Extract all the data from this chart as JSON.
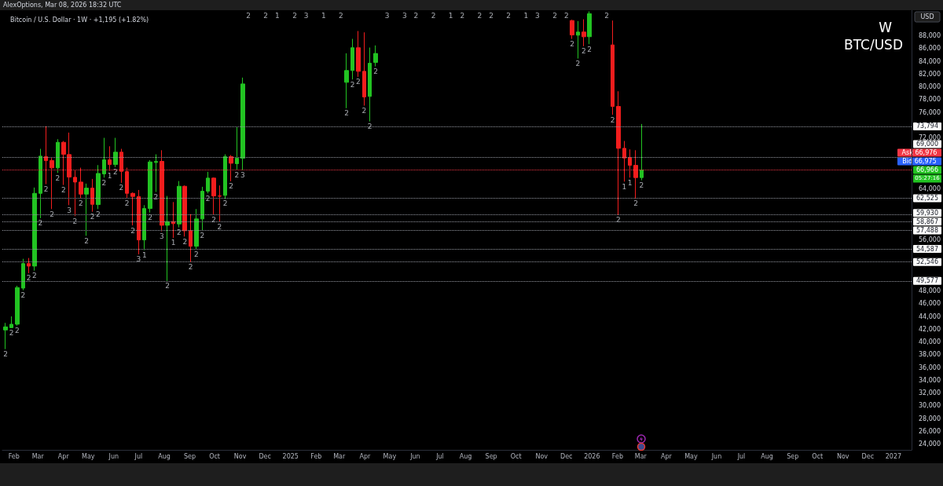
{
  "chart_data": {
    "type": "candlestick",
    "title": "BTC/USD",
    "subtitle": "Bitcoin / U.S. Dollar · 1W · +1,195 (+1.82%)",
    "ylabel": "USD",
    "colors": [
      "#22c322",
      "#22c322",
      "#22c322",
      "#22c322",
      "#f21d1d",
      "#22c322",
      "#22c322",
      "#f21d1d",
      "#f21d1d",
      "#22c322",
      "#f21d1d",
      "#f21d1d",
      "#f21d1d",
      "#f21d1d",
      "#22c322",
      "#f21d1d",
      "#22c322",
      "#22c322",
      "#f21d1d",
      "#22c322",
      "#f21d1d",
      "#f21d1d",
      "#f21d1d",
      "#f21d1d",
      "#22c322",
      "#22c322",
      "#22c322",
      "#f21d1d",
      "#22c322",
      "#f21d1d",
      "#22c322",
      "#f21d1d",
      "#f21d1d",
      "#22c322",
      "#22c322",
      "#22c322",
      "#f21d1d",
      "#f21d1d",
      "#22c322",
      "#f21d1d",
      "#22c322",
      "#22c322",
      "#22c322",
      "#22c322",
      "#f21d1d",
      "#f21d1d",
      "#22c322",
      "#22c322",
      "#f21d1d",
      "#22c322",
      "#f21d1d",
      "#22c322",
      "#f21d1d",
      "#f21d1d",
      "#f21d1d",
      "#f21d1d",
      "#f21d1d",
      "#22c322"
    ],
    "x": [
      "2024-01-22",
      "2024-01-29",
      "2024-02-05",
      "2024-02-12",
      "2024-02-19",
      "2024-02-26",
      "2024-03-04",
      "2024-03-11",
      "2024-03-18",
      "2024-03-25",
      "2024-04-01",
      "2024-04-08",
      "2024-04-15",
      "2024-04-22",
      "2024-04-29",
      "2024-05-06",
      "2024-05-13",
      "2024-05-20",
      "2024-05-27",
      "2024-06-03",
      "2024-06-10",
      "2024-06-17",
      "2024-06-24",
      "2024-07-01",
      "2024-07-08",
      "2024-07-15",
      "2024-07-22",
      "2024-07-29",
      "2024-08-05",
      "2024-08-12",
      "2024-08-19",
      "2024-08-26",
      "2024-09-02",
      "2024-09-09",
      "2024-09-16",
      "2024-09-23",
      "2024-09-30",
      "2024-10-07",
      "2024-10-14",
      "2024-10-21",
      "2024-10-28",
      "2024-11-04",
      "2025-03-10",
      "2025-03-17",
      "2025-03-24",
      "2025-03-31",
      "2025-04-07",
      "2025-04-14",
      "2025-12-08",
      "2025-12-15",
      "2025-12-22",
      "2025-12-29",
      "2026-01-26",
      "2026-02-02",
      "2026-02-09",
      "2026-02-16",
      "2026-02-23",
      "2026-03-02"
    ],
    "ohlc": [
      [
        41890,
        43000,
        38890,
        42380
      ],
      [
        42250,
        44020,
        42200,
        42790
      ],
      [
        42790,
        48820,
        42580,
        48530
      ],
      [
        48450,
        53040,
        48120,
        52300
      ],
      [
        52300,
        53170,
        50790,
        51900
      ],
      [
        51900,
        64210,
        51200,
        63300
      ],
      [
        63300,
        70280,
        59410,
        69130
      ],
      [
        69050,
        73790,
        64740,
        68430
      ],
      [
        68430,
        68840,
        60840,
        67290
      ],
      [
        67290,
        71790,
        66500,
        71300
      ],
      [
        71300,
        71500,
        64610,
        69420
      ],
      [
        69380,
        72820,
        61450,
        65850
      ],
      [
        65810,
        66920,
        59740,
        65070
      ],
      [
        65070,
        67320,
        62560,
        63180
      ],
      [
        63180,
        64830,
        56650,
        64120
      ],
      [
        64120,
        65560,
        60420,
        61580
      ],
      [
        61540,
        67730,
        60840,
        66420
      ],
      [
        66340,
        72000,
        65760,
        68550
      ],
      [
        68550,
        70680,
        66800,
        67810
      ],
      [
        67810,
        72000,
        67410,
        69750
      ],
      [
        69750,
        70280,
        64950,
        66750
      ],
      [
        66710,
        67320,
        62480,
        63300
      ],
      [
        63300,
        63450,
        58280,
        62810
      ],
      [
        62810,
        63830,
        53740,
        56000
      ],
      [
        56000,
        61450,
        54390,
        60920
      ],
      [
        60920,
        68510,
        60300,
        68220
      ],
      [
        68150,
        69420,
        63510,
        68300
      ],
      [
        68310,
        70060,
        57350,
        58300
      ],
      [
        58300,
        62890,
        49577,
        58870
      ],
      [
        58870,
        61940,
        56330,
        58550
      ],
      [
        58500,
        65230,
        57970,
        64410
      ],
      [
        64410,
        64540,
        56530,
        57440
      ],
      [
        57440,
        60030,
        52546,
        55010
      ],
      [
        55010,
        60840,
        54587,
        59290
      ],
      [
        59290,
        64330,
        57488,
        63630
      ],
      [
        63630,
        66670,
        63300,
        65690
      ],
      [
        65690,
        65800,
        59930,
        62890
      ],
      [
        62890,
        64540,
        58867,
        62850
      ],
      [
        62980,
        69420,
        62480,
        69050
      ],
      [
        69050,
        69300,
        65190,
        68020
      ],
      [
        67940,
        73760,
        67000,
        68800
      ],
      [
        68800,
        81440,
        66960,
        80450
      ],
      [
        80700,
        85250,
        76640,
        82550
      ],
      [
        82550,
        87510,
        81150,
        86120
      ],
      [
        86120,
        88740,
        81560,
        82420
      ],
      [
        82420,
        88530,
        77050,
        78400
      ],
      [
        78490,
        86150,
        74580,
        83690
      ],
      [
        83820,
        86480,
        83200,
        85220
      ],
      [
        90380,
        90500,
        87500,
        88120
      ],
      [
        88080,
        90300,
        84430,
        88580
      ],
      [
        88580,
        90580,
        86360,
        87840
      ],
      [
        87840,
        91820,
        86690,
        91450
      ],
      [
        86560,
        90380,
        75610,
        76920
      ],
      [
        76920,
        79300,
        59930,
        70360
      ],
      [
        70360,
        71510,
        65140,
        68840
      ],
      [
        68920,
        70190,
        65760,
        67690
      ],
      [
        67690,
        70060,
        62525,
        65771
      ],
      [
        65771,
        74170,
        65350,
        66966
      ]
    ],
    "xlim": [
      "2024-01-18",
      "2027-01-23"
    ],
    "xticks": [
      {
        "value": "2024-02-01",
        "label": "Feb"
      },
      {
        "value": "2024-03-01",
        "label": "Mar"
      },
      {
        "value": "2024-04-01",
        "label": "Apr"
      },
      {
        "value": "2024-05-01",
        "label": "May"
      },
      {
        "value": "2024-06-01",
        "label": "Jun"
      },
      {
        "value": "2024-07-01",
        "label": "Jul"
      },
      {
        "value": "2024-08-01",
        "label": "Aug"
      },
      {
        "value": "2024-09-01",
        "label": "Sep"
      },
      {
        "value": "2024-10-01",
        "label": "Oct"
      },
      {
        "value": "2024-11-01",
        "label": "Nov"
      },
      {
        "value": "2024-12-01",
        "label": "Dec"
      },
      {
        "value": "2025-01-01",
        "label": "2025"
      },
      {
        "value": "2025-02-01",
        "label": "Feb"
      },
      {
        "value": "2025-03-01",
        "label": "Mar"
      },
      {
        "value": "2025-04-01",
        "label": "Apr"
      },
      {
        "value": "2025-05-01",
        "label": "May"
      },
      {
        "value": "2025-06-01",
        "label": "Jun"
      },
      {
        "value": "2025-07-01",
        "label": "Jul"
      },
      {
        "value": "2025-08-01",
        "label": "Aug"
      },
      {
        "value": "2025-09-01",
        "label": "Sep"
      },
      {
        "value": "2025-10-01",
        "label": "Oct"
      },
      {
        "value": "2025-11-01",
        "label": "Nov"
      },
      {
        "value": "2025-12-01",
        "label": "Dec"
      },
      {
        "value": "2026-01-01",
        "label": "2026"
      },
      {
        "value": "2026-02-01",
        "label": "Feb"
      },
      {
        "value": "2026-03-01",
        "label": "Mar"
      },
      {
        "value": "2026-04-01",
        "label": "Apr"
      },
      {
        "value": "2026-05-01",
        "label": "May"
      },
      {
        "value": "2026-06-01",
        "label": "Jun"
      },
      {
        "value": "2026-07-01",
        "label": "Jul"
      },
      {
        "value": "2026-08-01",
        "label": "Aug"
      },
      {
        "value": "2026-09-01",
        "label": "Sep"
      },
      {
        "value": "2026-10-01",
        "label": "Oct"
      },
      {
        "value": "2026-11-01",
        "label": "Nov"
      },
      {
        "value": "2026-12-01",
        "label": "Dec"
      },
      {
        "value": "2027-01-01",
        "label": "2027"
      }
    ],
    "ylim": [
      23100,
      92000
    ],
    "yticks": [
      {
        "value": 24000,
        "label": "24,000"
      },
      {
        "value": 26000,
        "label": "26,000"
      },
      {
        "value": 28000,
        "label": "28,000"
      },
      {
        "value": 30000,
        "label": "30,000"
      },
      {
        "value": 32000,
        "label": "32,000"
      },
      {
        "value": 34000,
        "label": "34,000"
      },
      {
        "value": 36000,
        "label": "36,000"
      },
      {
        "value": 38000,
        "label": "38,000"
      },
      {
        "value": 40000,
        "label": "40,000"
      },
      {
        "value": 42000,
        "label": "42,000"
      },
      {
        "value": 44000,
        "label": "44,000"
      },
      {
        "value": 46000,
        "label": "46,000"
      },
      {
        "value": 48000,
        "label": "48,000"
      },
      {
        "value": 56000,
        "label": "56,000"
      },
      {
        "value": 64000,
        "label": "64,000"
      },
      {
        "value": 72000,
        "label": "72,000"
      },
      {
        "value": 76000,
        "label": "76,000"
      },
      {
        "value": 78000,
        "label": "78,000"
      },
      {
        "value": 80000,
        "label": "80,000"
      },
      {
        "value": 82000,
        "label": "82,000"
      },
      {
        "value": 84000,
        "label": "84,000"
      },
      {
        "value": 86000,
        "label": "86,000"
      },
      {
        "value": 88000,
        "label": "88,000"
      }
    ],
    "ref_lines": [
      {
        "axis": "y",
        "value": 73794,
        "label": "73,794",
        "line_style": "dotted"
      },
      {
        "axis": "y",
        "value": 69000,
        "label": "69,000",
        "line_style": "dotted"
      },
      {
        "axis": "y",
        "value": 66966,
        "label": "66,966",
        "color": "#f23645",
        "line_style": "dotted"
      },
      {
        "axis": "y",
        "value": 62525,
        "label": "62,525",
        "line_style": "dotted"
      },
      {
        "axis": "y",
        "value": 59930,
        "label": "59,930",
        "line_style": "dotted"
      },
      {
        "axis": "y",
        "value": 58867,
        "label": "58,867",
        "line_style": "dotted"
      },
      {
        "axis": "y",
        "value": 57488,
        "label": "57,488",
        "line_style": "dotted"
      },
      {
        "axis": "y",
        "value": 54587,
        "label": "54,587",
        "line_style": "dotted"
      },
      {
        "axis": "y",
        "value": 52546,
        "label": "52,546",
        "line_style": "dotted"
      },
      {
        "axis": "y",
        "value": 49577,
        "label": "49,577",
        "line_style": "dotted"
      }
    ],
    "annotations": [
      "AlexOptions, Mar 08, 2026 18:32 UTC",
      "W",
      "Ask 66,976",
      "Bid 66,975",
      "05:27:16",
      "2",
      "2",
      "1",
      "2",
      "3",
      "1",
      "2",
      "3",
      "3",
      "2",
      "2",
      "1",
      "2",
      "2",
      "2",
      "2",
      "1",
      "3",
      "2",
      "2",
      "2",
      {
        "text": "2",
        "x": "2024-01-22",
        "y": 38890
      },
      {
        "text": "2",
        "x": "2024-01-29",
        "y": 42200
      },
      {
        "text": "2",
        "x": "2024-02-05",
        "y": 42580
      },
      {
        "text": "2",
        "x": "2024-02-12",
        "y": 48120
      },
      {
        "text": "2",
        "x": "2024-02-19",
        "y": 50790
      },
      {
        "text": "2",
        "x": "2024-02-26",
        "y": 51200
      },
      {
        "text": "2",
        "x": "2024-03-04",
        "y": 59410
      },
      {
        "text": "2",
        "x": "2024-03-11",
        "y": 64740
      },
      {
        "text": "2",
        "x": "2024-03-18",
        "y": 60840
      },
      {
        "text": "2",
        "x": "2024-03-25",
        "y": 66500
      },
      {
        "text": "2",
        "x": "2024-04-01",
        "y": 64610
      },
      {
        "text": "3",
        "x": "2024-04-08",
        "y": 61450
      },
      {
        "text": "2",
        "x": "2024-04-15",
        "y": 59740
      },
      {
        "text": "2",
        "x": "2024-04-22",
        "y": 62560
      },
      {
        "text": "2",
        "x": "2024-04-29",
        "y": 56650
      },
      {
        "text": "2",
        "x": "2024-05-06",
        "y": 60420
      },
      {
        "text": "2",
        "x": "2024-05-13",
        "y": 60840
      },
      {
        "text": "2",
        "x": "2024-05-20",
        "y": 65760
      },
      {
        "text": "1",
        "x": "2024-05-27",
        "y": 66800
      },
      {
        "text": "2",
        "x": "2024-06-03",
        "y": 67410
      },
      {
        "text": "2",
        "x": "2024-06-10",
        "y": 64950
      },
      {
        "text": "2",
        "x": "2024-06-17",
        "y": 62480
      },
      {
        "text": "2",
        "x": "2024-06-24",
        "y": 58280
      },
      {
        "text": "3",
        "x": "2024-07-01",
        "y": 53740
      },
      {
        "text": "1",
        "x": "2024-07-08",
        "y": 54390
      },
      {
        "text": "2",
        "x": "2024-07-15",
        "y": 60300
      },
      {
        "text": "2",
        "x": "2024-07-22",
        "y": 63510
      },
      {
        "text": "3",
        "x": "2024-07-29",
        "y": 57350
      },
      {
        "text": "2",
        "x": "2024-08-05",
        "y": 49577
      },
      {
        "text": "1",
        "x": "2024-08-12",
        "y": 56330
      },
      {
        "text": "2",
        "x": "2024-08-19",
        "y": 57970
      },
      {
        "text": "2",
        "x": "2024-08-26",
        "y": 56530
      },
      {
        "text": "2",
        "x": "2024-09-02",
        "y": 52546
      },
      {
        "text": "2",
        "x": "2024-09-09",
        "y": 54587
      },
      {
        "text": "2",
        "x": "2024-09-16",
        "y": 57488
      },
      {
        "text": "2",
        "x": "2024-09-23",
        "y": 63300
      },
      {
        "text": "2",
        "x": "2024-09-30",
        "y": 59930
      },
      {
        "text": "2",
        "x": "2024-10-07",
        "y": 58867
      },
      {
        "text": "2",
        "x": "2024-10-14",
        "y": 62480
      },
      {
        "text": "2",
        "x": "2024-10-21",
        "y": 65190
      },
      {
        "text": "2",
        "x": "2024-10-28",
        "y": 67000
      },
      {
        "text": "3",
        "x": "2024-11-04",
        "y": 66960
      },
      {
        "text": "2",
        "x": "2025-03-10",
        "y": 76640
      },
      {
        "text": "2",
        "x": "2025-03-17",
        "y": 81150
      },
      {
        "text": "2",
        "x": "2025-03-24",
        "y": 81560
      },
      {
        "text": "2",
        "x": "2025-03-31",
        "y": 77050
      },
      {
        "text": "2",
        "x": "2025-04-07",
        "y": 74580
      },
      {
        "text": "2",
        "x": "2025-04-14",
        "y": 83200
      },
      {
        "text": "2",
        "x": "2025-12-08",
        "y": 87500
      },
      {
        "text": "2",
        "x": "2025-12-15",
        "y": 84430
      },
      {
        "text": "2",
        "x": "2025-12-22",
        "y": 86360
      },
      {
        "text": "2",
        "x": "2025-12-29",
        "y": 86690
      },
      {
        "text": "2",
        "x": "2026-01-26",
        "y": 75610
      },
      {
        "text": "2",
        "x": "2026-02-02",
        "y": 59930
      },
      {
        "text": "1",
        "x": "2026-02-09",
        "y": 65140
      },
      {
        "text": "1",
        "x": "2026-02-16",
        "y": 65760
      },
      {
        "text": "2",
        "x": "2026-02-23",
        "y": 62525
      },
      {
        "text": "2",
        "x": "2026-03-02",
        "y": 65350
      }
    ]
  }
}
